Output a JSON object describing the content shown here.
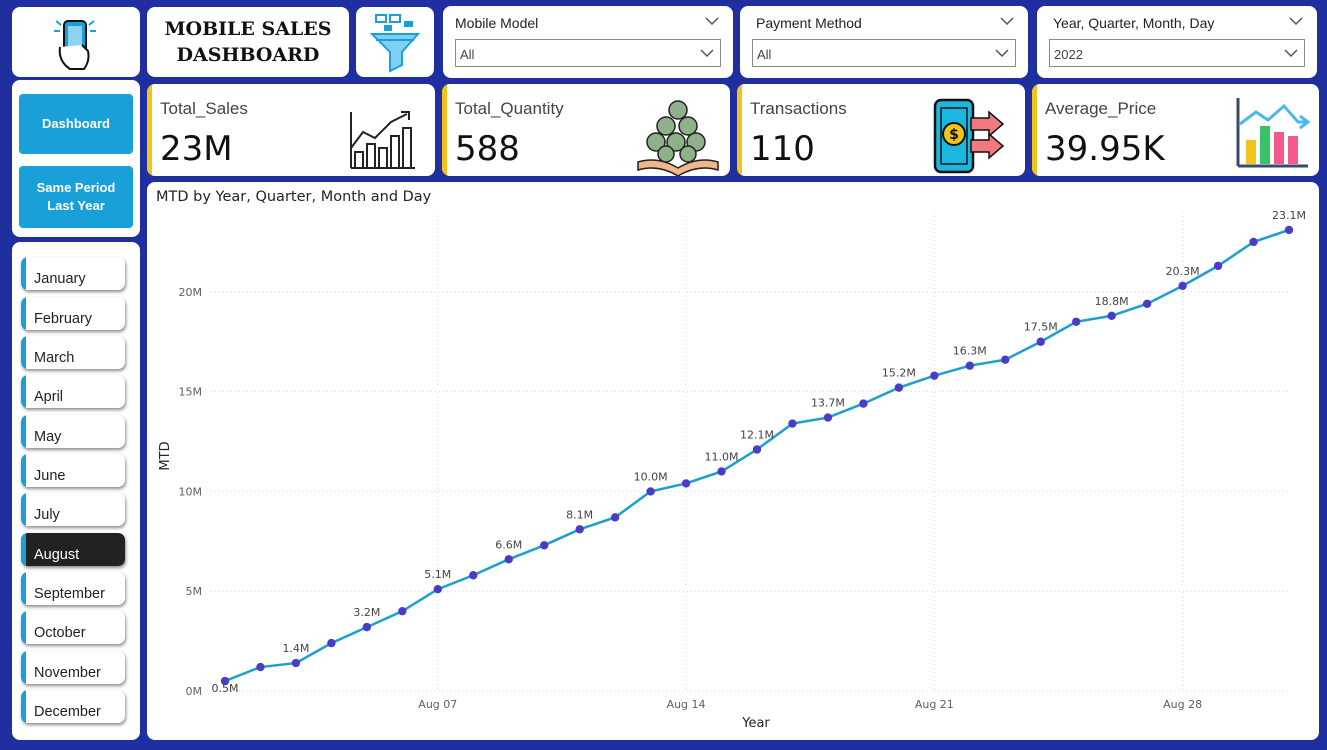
{
  "header": {
    "title": "MOBILE SALES\nDASHBOARD",
    "logo_icon": "phone-hand-icon",
    "filter_icon": "funnel-icon"
  },
  "slicers": [
    {
      "title": "Mobile Model",
      "value": "All"
    },
    {
      "title": "Payment Method",
      "value": "All"
    },
    {
      "title": "Year, Quarter, Month, Day",
      "value": "2022"
    }
  ],
  "nav": {
    "dashboard_label": "Dashboard",
    "spl_label": "Same Period\nLast Year"
  },
  "months": {
    "items": [
      "January",
      "February",
      "March",
      "April",
      "May",
      "June",
      "July",
      "August",
      "September",
      "October",
      "November",
      "December"
    ],
    "selected": "August"
  },
  "kpis": [
    {
      "label": "Total_Sales",
      "value": "23M",
      "icon": "bar-chart-growth-icon"
    },
    {
      "label": "Total_Quantity",
      "value": "588",
      "icon": "money-bags-icon"
    },
    {
      "label": "Transactions",
      "value": "110",
      "icon": "phone-payment-icon"
    },
    {
      "label": "Average_Price",
      "value": "39.95K",
      "icon": "colored-bars-trend-icon"
    }
  ],
  "colors": {
    "background": "#1f2fa0",
    "accent_blue": "#1aa0d8",
    "kpi_accent": "#f2c31a",
    "line": "#1b9fd0",
    "marker": "#4b3bc9"
  },
  "chart_data": {
    "type": "line",
    "title": "MTD by Year, Quarter, Month and Day",
    "xlabel": "Year",
    "ylabel": "MTD",
    "x": [
      "2022-08-01",
      "2022-08-02",
      "2022-08-03",
      "2022-08-04",
      "2022-08-05",
      "2022-08-06",
      "2022-08-07",
      "2022-08-08",
      "2022-08-09",
      "2022-08-10",
      "2022-08-11",
      "2022-08-12",
      "2022-08-13",
      "2022-08-14",
      "2022-08-15",
      "2022-08-16",
      "2022-08-17",
      "2022-08-18",
      "2022-08-19",
      "2022-08-20",
      "2022-08-21",
      "2022-08-22",
      "2022-08-23",
      "2022-08-24",
      "2022-08-25",
      "2022-08-26",
      "2022-08-27",
      "2022-08-28",
      "2022-08-29",
      "2022-08-30",
      "2022-08-31"
    ],
    "x_ticks": [
      "Aug 07",
      "Aug 14",
      "Aug 21",
      "Aug 28"
    ],
    "y_ticks": [
      "0M",
      "5M",
      "10M",
      "15M",
      "20M"
    ],
    "ylim": [
      0,
      24
    ],
    "y_unit": "M",
    "series": [
      {
        "values": [
          0.5,
          1.2,
          1.4,
          2.4,
          3.2,
          4.0,
          5.1,
          5.8,
          6.6,
          7.3,
          8.1,
          8.7,
          10.0,
          10.4,
          11.0,
          12.1,
          13.4,
          13.7,
          14.4,
          15.2,
          15.8,
          16.3,
          16.6,
          17.5,
          18.5,
          18.8,
          19.4,
          20.3,
          21.3,
          22.5,
          23.1
        ],
        "labels": [
          "0.5M",
          "",
          "1.4M",
          "",
          "3.2M",
          "",
          "5.1M",
          "",
          "6.6M",
          "",
          "8.1M",
          "",
          "10.0M",
          "",
          "11.0M",
          "12.1M",
          "",
          "13.7M",
          "",
          "15.2M",
          "",
          "16.3M",
          "",
          "17.5M",
          "",
          "18.8M",
          "",
          "20.3M",
          "",
          "",
          "23.1M"
        ]
      }
    ],
    "grid": true,
    "legend": "none"
  }
}
